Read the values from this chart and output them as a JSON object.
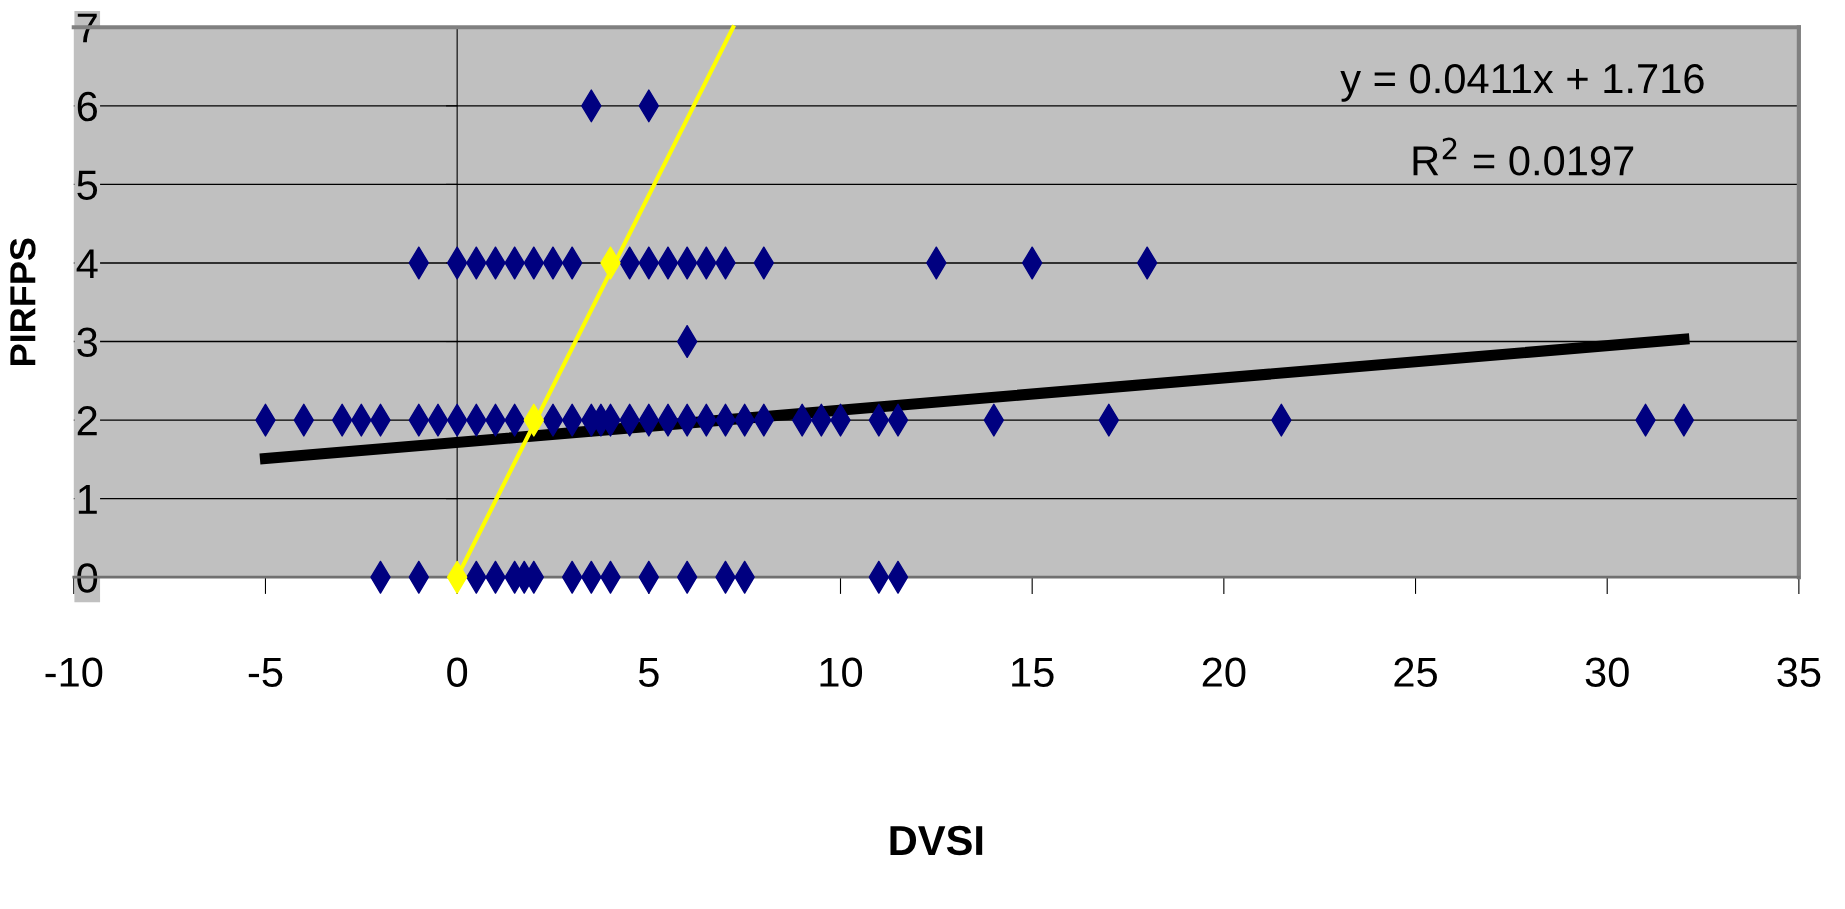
{
  "chart_data": {
    "type": "scatter",
    "xlabel": "DVSI",
    "ylabel": "PIRFPS",
    "xlim": [
      -10,
      35
    ],
    "ylim": [
      0,
      7
    ],
    "xticks": [
      -10,
      -5,
      0,
      5,
      10,
      15,
      20,
      25,
      30,
      35
    ],
    "yticks": [
      0,
      1,
      2,
      3,
      4,
      5,
      6,
      7
    ],
    "grid": "y",
    "marker": "diamond",
    "legend": false,
    "series": [
      {
        "color": "#000080",
        "x": [
          3.5,
          5,
          6,
          -1,
          0,
          0.5,
          1,
          1.5,
          2,
          2.5,
          3,
          4.5,
          5,
          5.5,
          6,
          6.5,
          7,
          8,
          12.5,
          15,
          18,
          -5,
          -4,
          -3,
          -2.5,
          -2,
          -1,
          -0.5,
          0,
          0.5,
          1,
          1.5,
          2.5,
          3,
          3.5,
          3.75,
          4,
          4.5,
          5,
          5.5,
          6,
          6.5,
          7,
          7.5,
          8,
          9,
          9.5,
          10,
          11,
          11.5,
          14,
          17,
          21.5,
          31,
          32,
          -2,
          -1,
          0.5,
          1,
          1.5,
          1.75,
          2,
          3,
          3.5,
          4,
          5,
          6,
          7,
          7.5,
          11,
          11.5
        ],
        "values": [
          6,
          6,
          3,
          4,
          4,
          4,
          4,
          4,
          4,
          4,
          4,
          4,
          4,
          4,
          4,
          4,
          4,
          4,
          4,
          4,
          4,
          2,
          2,
          2,
          2,
          2,
          2,
          2,
          2,
          2,
          2,
          2,
          2,
          2,
          2,
          2,
          2,
          2,
          2,
          2,
          2,
          2,
          2,
          2,
          2,
          2,
          2,
          2,
          2,
          2,
          2,
          2,
          2,
          2,
          2,
          0,
          0,
          0,
          0,
          0,
          0,
          0,
          0,
          0,
          0,
          0,
          0,
          0,
          0,
          0,
          0
        ]
      },
      {
        "type": "line",
        "color": "#000000",
        "x": [
          -5,
          32
        ],
        "values": [
          1.51,
          3.03
        ],
        "marker": "none"
      },
      {
        "type": "line",
        "color": "#ffff00",
        "x": [
          0,
          7.2
        ],
        "values": [
          0,
          7
        ],
        "marker": "none"
      },
      {
        "color": "#ffff00",
        "x": [
          0,
          2,
          4
        ],
        "values": [
          0,
          2,
          4
        ]
      }
    ],
    "annotations": [
      "y = 0.0411x + 1.716",
      "R$^{2}$ = 0.0197"
    ]
  }
}
